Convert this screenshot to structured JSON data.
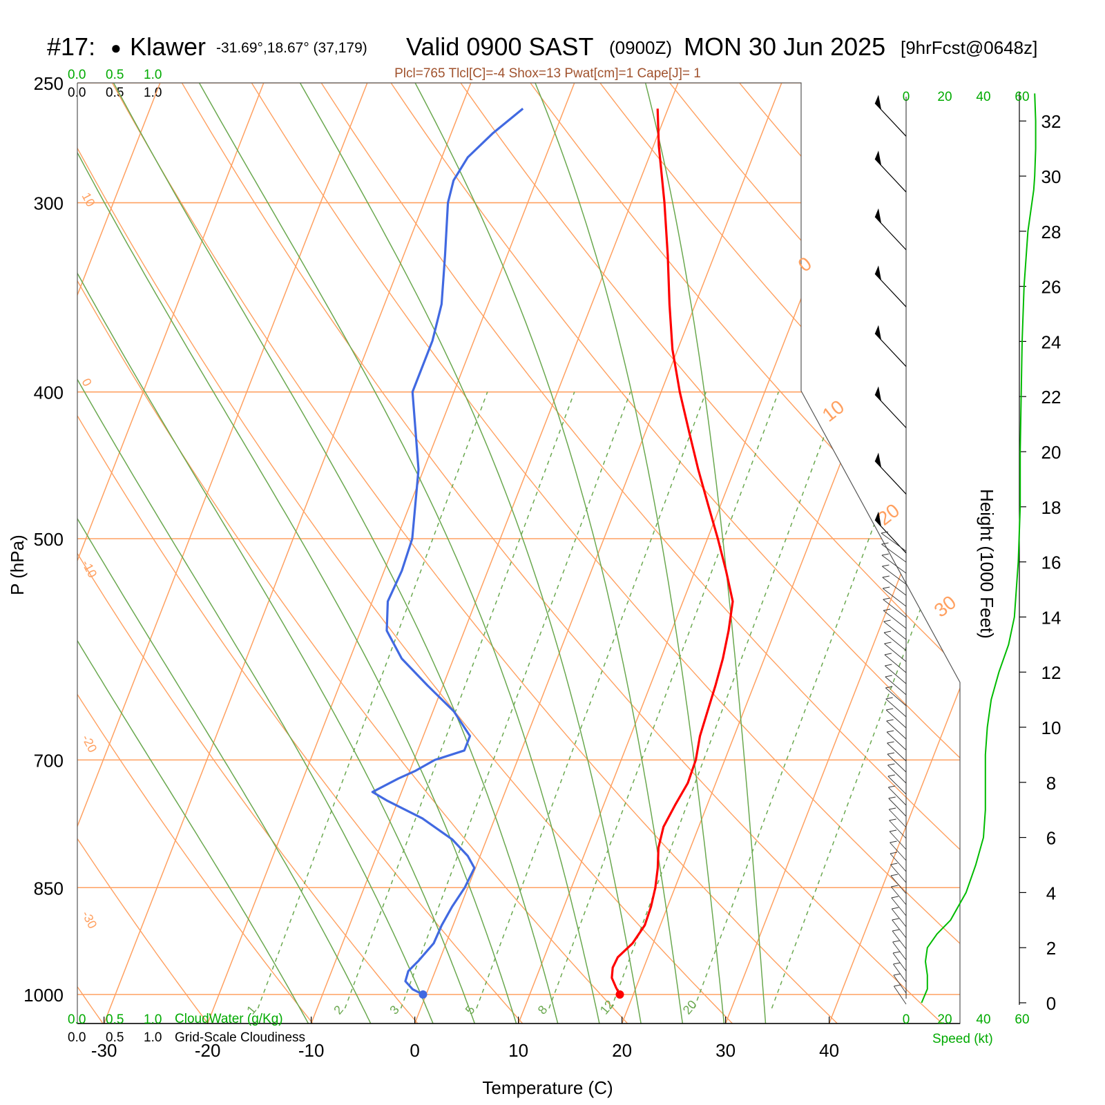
{
  "header": {
    "station_number": "#17:",
    "station_marker": "●",
    "station_name": "Klawer",
    "coords": "-31.69°,18.67° (37,179)",
    "valid": "Valid 0900 SAST",
    "zulu": "(0900Z)",
    "date": "MON 30 Jun 2025",
    "forecast": "[9hrFcst@0648z]",
    "indices": "Plcl=765 Tlcl[C]=-4 Shox=13 Pwat[cm]=1 Cape[J]= 1"
  },
  "chart_data": {
    "type": "line",
    "subtype": "skew-t log-p sounding",
    "xlabel": "Temperature (C)",
    "ylabel": "P (hPa)",
    "right_ylabel": "Height (1000 Feet)",
    "x_ticks": [
      -30,
      -20,
      -10,
      0,
      10,
      20,
      30,
      40
    ],
    "p_levels": [
      250,
      300,
      400,
      500,
      700,
      850,
      1000
    ],
    "p_range": [
      250,
      1050
    ],
    "isotherms": [
      -110,
      -100,
      -90,
      -80,
      -70,
      -60,
      -50,
      -40,
      -30,
      -20,
      -10,
      0,
      10,
      20,
      30,
      40
    ],
    "isotherm_labels": [
      {
        "label": "10",
        "t": 10
      },
      {
        "label": "0",
        "t": 0
      },
      {
        "label": "-10",
        "t": -10
      },
      {
        "label": "-20",
        "t": -20
      },
      {
        "label": "-30",
        "t": -30
      },
      {
        "label": "0",
        "t": 0
      },
      {
        "label": "10",
        "t": 10
      },
      {
        "label": "20",
        "t": 20
      },
      {
        "label": "30",
        "t": 30
      }
    ],
    "mixing_ratio_lines": [
      {
        "label": "1",
        "t1000": -15.6
      },
      {
        "label": "2",
        "t1000": -7.2
      },
      {
        "label": "3",
        "t1000": -1.8
      },
      {
        "label": "5",
        "t1000": 5.5
      },
      {
        "label": "8",
        "t1000": 12.5
      },
      {
        "label": "12",
        "t1000": 18.5
      },
      {
        "label": "20",
        "t1000": 26.5
      },
      {
        "label": "",
        "t1000": 34
      }
    ],
    "temperature_profile": {
      "name": "Temperature",
      "color": "#ff0000",
      "points": [
        [
          1000,
          18.7
        ],
        [
          990,
          18.1
        ],
        [
          975,
          17.3
        ],
        [
          960,
          17.0
        ],
        [
          945,
          17.1
        ],
        [
          925,
          18.0
        ],
        [
          900,
          18.5
        ],
        [
          875,
          18.4
        ],
        [
          850,
          18.1
        ],
        [
          825,
          17.6
        ],
        [
          800,
          16.9
        ],
        [
          775,
          16.6
        ],
        [
          750,
          16.9
        ],
        [
          725,
          17.3
        ],
        [
          700,
          17.2
        ],
        [
          675,
          16.7
        ],
        [
          650,
          16.5
        ],
        [
          625,
          16.3
        ],
        [
          600,
          16.0
        ],
        [
          575,
          15.5
        ],
        [
          550,
          14.8
        ],
        [
          525,
          13.0
        ],
        [
          500,
          11.0
        ],
        [
          475,
          8.8
        ],
        [
          450,
          6.5
        ],
        [
          425,
          4.2
        ],
        [
          400,
          1.8
        ],
        [
          375,
          -0.5
        ],
        [
          350,
          -2.5
        ],
        [
          325,
          -4.5
        ],
        [
          300,
          -6.8
        ],
        [
          275,
          -9.5
        ],
        [
          260,
          -11.0
        ]
      ]
    },
    "dewpoint_profile": {
      "name": "Dew point",
      "color": "#4169e1",
      "points": [
        [
          1000,
          -0.3
        ],
        [
          992,
          -1.5
        ],
        [
          980,
          -2.5
        ],
        [
          965,
          -2.6
        ],
        [
          950,
          -2.0
        ],
        [
          925,
          -1.2
        ],
        [
          900,
          -1.1
        ],
        [
          875,
          -0.8
        ],
        [
          850,
          -0.3
        ],
        [
          825,
          -0.1
        ],
        [
          810,
          -1.2
        ],
        [
          790,
          -3.3
        ],
        [
          765,
          -7.0
        ],
        [
          745,
          -11.0
        ],
        [
          735,
          -12.8
        ],
        [
          720,
          -10.8
        ],
        [
          712,
          -9.5
        ],
        [
          700,
          -8.0
        ],
        [
          690,
          -5.5
        ],
        [
          675,
          -5.5
        ],
        [
          650,
          -8.0
        ],
        [
          625,
          -11.5
        ],
        [
          600,
          -15.0
        ],
        [
          575,
          -17.5
        ],
        [
          550,
          -18.5
        ],
        [
          525,
          -18.3
        ],
        [
          500,
          -18.5
        ],
        [
          450,
          -20.5
        ],
        [
          400,
          -24.0
        ],
        [
          370,
          -24.0
        ],
        [
          350,
          -24.5
        ],
        [
          325,
          -26.0
        ],
        [
          300,
          -27.7
        ],
        [
          290,
          -28.0
        ],
        [
          280,
          -27.5
        ],
        [
          270,
          -26.0
        ],
        [
          260,
          -24.0
        ]
      ]
    },
    "surface_markers": {
      "temperature": 18.7,
      "dewpoint": -0.3,
      "pressure": 1000
    },
    "wind_profile": {
      "speed_axis_label": "Speed (kt)",
      "speed_ticks": [
        0,
        20,
        40,
        60
      ],
      "height_ticks": [
        0,
        2,
        4,
        6,
        8,
        10,
        12,
        14,
        16,
        18,
        20,
        22,
        24,
        26,
        28,
        30,
        32
      ],
      "speed_curve": [
        [
          0,
          8
        ],
        [
          0.5,
          11
        ],
        [
          1,
          11
        ],
        [
          1.5,
          10
        ],
        [
          2,
          11
        ],
        [
          2.5,
          16
        ],
        [
          3,
          23
        ],
        [
          4,
          31
        ],
        [
          5,
          36
        ],
        [
          6,
          40
        ],
        [
          7,
          41
        ],
        [
          8,
          41
        ],
        [
          9,
          41
        ],
        [
          10,
          42
        ],
        [
          11,
          44
        ],
        [
          12,
          48
        ],
        [
          13,
          53
        ],
        [
          14,
          56
        ],
        [
          15,
          57
        ],
        [
          16,
          58
        ],
        [
          18,
          59
        ],
        [
          20,
          59
        ],
        [
          22,
          59.5
        ],
        [
          24,
          60
        ],
        [
          26,
          61
        ],
        [
          28,
          63
        ],
        [
          29.5,
          66
        ],
        [
          30,
          66.5
        ],
        [
          31,
          67
        ],
        [
          32,
          67
        ],
        [
          33,
          66.5
        ]
      ],
      "barb_pressures": [
        260,
        283,
        309,
        337,
        369,
        405,
        448,
        490
      ]
    },
    "cloud_axes": [
      {
        "name": "CloudWater (g/Kg)",
        "ticks": [
          "0.0",
          "0.5",
          "1.0"
        ],
        "color": "#00aa00"
      },
      {
        "name": "Grid-Scale Cloudiness",
        "ticks": [
          "0.0",
          "0.5",
          "1.0"
        ],
        "color": "#000000"
      }
    ],
    "colors": {
      "isotherm": "#ffa060",
      "dry_adiabat": "#ffa060",
      "moist_adiabat": "#6aa84f",
      "mixing_ratio": "#6aa84f",
      "wind_speed": "#00bb00",
      "indices_text": "#a0522d"
    },
    "grid": true
  }
}
